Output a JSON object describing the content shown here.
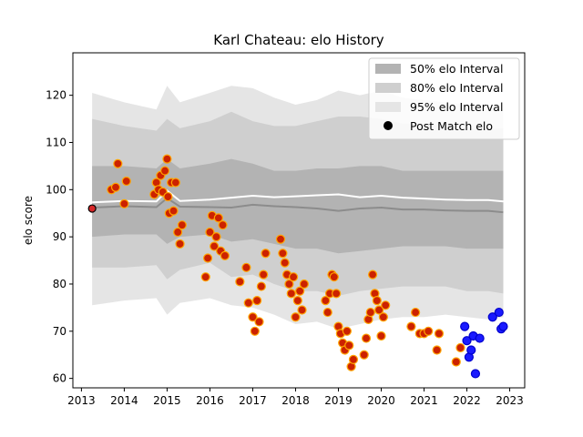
{
  "chart_data": {
    "type": "scatter",
    "title": "Karl Chateau: elo History",
    "xlabel": "",
    "ylabel": "elo score",
    "xlim": [
      2012.8,
      2023.35
    ],
    "ylim": [
      58,
      129
    ],
    "x_ticks": [
      2013,
      2014,
      2015,
      2016,
      2017,
      2018,
      2019,
      2020,
      2021,
      2022,
      2023
    ],
    "y_ticks": [
      60,
      70,
      80,
      90,
      100,
      110,
      120
    ],
    "grid": false,
    "legend_position": "top-right",
    "legend": [
      "50% elo Interval",
      "80% elo Interval",
      "95% elo Interval",
      "Post Match elo"
    ],
    "colors": {
      "band95": "#e5e5e5",
      "band80": "#cfcfcf",
      "band50": "#b3b3b3",
      "mean_line": "#ffffff",
      "median_line": "#8c8c8c",
      "point_orange_fill": "#cc2200",
      "point_orange_edge": "#ffa500",
      "point_blue_fill": "#1a1aff",
      "point_blue_edge": "#0000cc",
      "point_first_fill": "#d62728",
      "point_first_edge": "#000000"
    },
    "band_x": [
      2013.25,
      2014.0,
      2014.75,
      2015.0,
      2015.3,
      2016.0,
      2016.5,
      2017.0,
      2017.5,
      2018.0,
      2018.5,
      2019.0,
      2019.5,
      2020.0,
      2020.5,
      2021.0,
      2021.5,
      2022.0,
      2022.5,
      2022.85
    ],
    "band95_upper": [
      120.5,
      118.5,
      117.0,
      122.0,
      118.5,
      120.5,
      122.0,
      121.5,
      119.5,
      118.0,
      119.0,
      121.0,
      120.0,
      121.0,
      119.5,
      119.0,
      118.5,
      118.0,
      117.5,
      117.0
    ],
    "band95_lower": [
      75.5,
      76.5,
      77.0,
      73.5,
      76.0,
      77.0,
      75.5,
      75.0,
      73.5,
      71.5,
      72.0,
      70.5,
      71.5,
      72.5,
      73.0,
      73.0,
      73.5,
      73.0,
      72.5,
      73.0
    ],
    "band80_upper": [
      115.0,
      113.5,
      112.5,
      115.0,
      113.0,
      114.5,
      116.5,
      114.5,
      113.5,
      113.5,
      114.5,
      115.5,
      115.5,
      115.0,
      114.0,
      114.0,
      113.5,
      113.0,
      113.0,
      113.0
    ],
    "band80_lower": [
      83.5,
      83.5,
      84.0,
      81.0,
      83.0,
      84.5,
      81.5,
      82.0,
      80.0,
      78.5,
      78.5,
      77.5,
      78.5,
      79.0,
      79.5,
      79.5,
      79.5,
      78.5,
      78.5,
      78.0
    ],
    "band50_upper": [
      105.0,
      105.0,
      104.5,
      106.5,
      104.5,
      105.5,
      106.5,
      105.5,
      104.0,
      104.0,
      104.5,
      104.5,
      105.0,
      105.0,
      104.0,
      104.0,
      104.0,
      104.0,
      104.0,
      104.0
    ],
    "band50_lower": [
      90.0,
      90.5,
      90.5,
      88.5,
      90.0,
      90.5,
      89.0,
      89.5,
      88.5,
      87.5,
      87.5,
      86.5,
      87.0,
      87.5,
      88.0,
      88.0,
      88.0,
      87.5,
      87.5,
      87.5
    ],
    "mean_line": [
      97.3,
      97.6,
      97.5,
      99.8,
      97.6,
      97.9,
      98.3,
      98.7,
      98.4,
      98.6,
      98.8,
      99.0,
      98.4,
      98.7,
      98.3,
      98.1,
      97.9,
      97.8,
      97.8,
      97.5
    ],
    "median_line": [
      96.2,
      96.5,
      96.3,
      98.2,
      96.4,
      96.3,
      96.2,
      96.8,
      96.5,
      96.3,
      96.0,
      95.5,
      96.0,
      96.2,
      95.8,
      95.8,
      95.6,
      95.5,
      95.5,
      95.2
    ],
    "post_match_orange": {
      "x": [
        2013.7,
        2013.8,
        2013.85,
        2014.0,
        2014.05,
        2014.7,
        2014.75,
        2014.8,
        2014.85,
        2014.9,
        2014.95,
        2015.0,
        2015.02,
        2015.05,
        2015.1,
        2015.15,
        2015.2,
        2015.25,
        2015.3,
        2015.35,
        2015.9,
        2015.95,
        2016.0,
        2016.05,
        2016.1,
        2016.15,
        2016.2,
        2016.25,
        2016.3,
        2016.35,
        2016.7,
        2016.85,
        2016.9,
        2017.0,
        2017.05,
        2017.1,
        2017.15,
        2017.2,
        2017.25,
        2017.3,
        2017.65,
        2017.7,
        2017.75,
        2017.8,
        2017.85,
        2017.9,
        2017.95,
        2018.0,
        2018.05,
        2018.1,
        2018.15,
        2018.2,
        2018.7,
        2018.75,
        2018.8,
        2018.85,
        2018.9,
        2018.95,
        2019.0,
        2019.05,
        2019.1,
        2019.15,
        2019.2,
        2019.25,
        2019.3,
        2019.35,
        2019.6,
        2019.65,
        2019.7,
        2019.75,
        2019.8,
        2019.85,
        2019.9,
        2019.95,
        2020.0,
        2020.05,
        2020.1,
        2020.7,
        2020.8,
        2020.9,
        2021.0,
        2021.1,
        2021.3,
        2021.35,
        2021.75,
        2021.85
      ],
      "y": [
        100.0,
        100.5,
        105.5,
        97.0,
        101.8,
        99.0,
        101.5,
        100.0,
        103.0,
        99.5,
        104.0,
        106.5,
        98.5,
        95.0,
        101.5,
        95.5,
        101.5,
        91.0,
        88.5,
        92.5,
        81.5,
        85.5,
        91.0,
        94.5,
        88.0,
        90.0,
        94.0,
        87.0,
        92.5,
        86.0,
        80.5,
        83.5,
        76.0,
        73.0,
        70.0,
        76.5,
        72.0,
        79.5,
        82.0,
        86.5,
        89.5,
        86.5,
        84.5,
        82.0,
        80.0,
        78.0,
        81.5,
        73.0,
        76.5,
        78.5,
        74.5,
        80.0,
        76.5,
        74.0,
        78.0,
        82.0,
        81.5,
        78.0,
        71.0,
        69.5,
        67.5,
        66.0,
        70.0,
        67.0,
        62.5,
        64.0,
        65.0,
        68.5,
        72.5,
        74.0,
        82.0,
        78.0,
        76.5,
        74.5,
        69.0,
        73.0,
        75.5,
        71.0,
        74.0,
        69.5,
        69.5,
        70.0,
        66.0,
        69.5,
        63.5,
        66.5
      ]
    },
    "post_match_blue": {
      "x": [
        2021.95,
        2022.0,
        2022.05,
        2022.1,
        2022.15,
        2022.2,
        2022.3,
        2022.6,
        2022.75,
        2022.8,
        2022.85
      ],
      "y": [
        71.0,
        68.0,
        64.5,
        66.0,
        69.0,
        61.0,
        68.5,
        73.0,
        74.0,
        70.5,
        71.0
      ]
    },
    "post_match_first": {
      "x": [
        2013.25
      ],
      "y": [
        96.0
      ]
    }
  }
}
